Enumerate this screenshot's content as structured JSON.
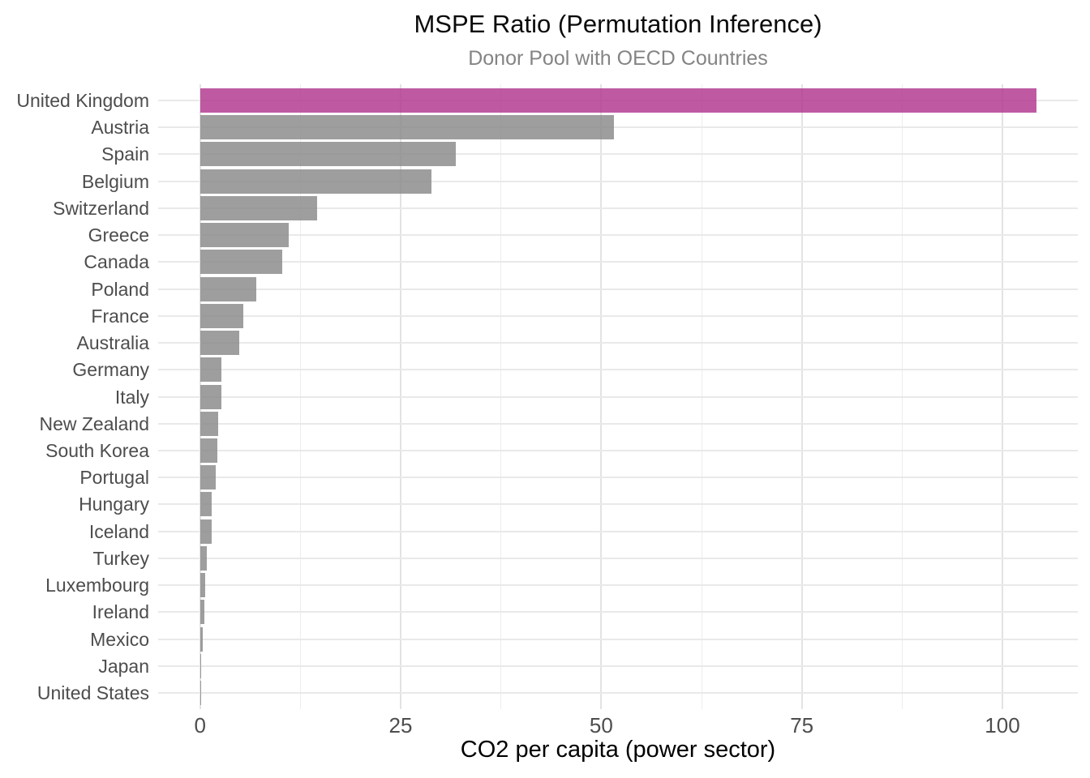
{
  "header": {
    "title": "MSPE Ratio (Permutation Inference)",
    "subtitle": "Donor Pool with OECD Countries"
  },
  "chart_data": {
    "type": "bar",
    "orientation": "horizontal",
    "title": "MSPE Ratio (Permutation Inference)",
    "subtitle": "Donor Pool with OECD Countries",
    "xlabel": "CO2 per capita (power sector)",
    "ylabel": "",
    "x_ticks": [
      0,
      25,
      50,
      75,
      100
    ],
    "xlim": [
      -5.2,
      109.4
    ],
    "grid": "major-and-minor-vertical, one-horizontal-line-per-category",
    "legend": "none",
    "categories": [
      "United Kingdom",
      "Austria",
      "Spain",
      "Belgium",
      "Switzerland",
      "Greece",
      "Canada",
      "Poland",
      "France",
      "Australia",
      "Germany",
      "Italy",
      "New Zealand",
      "South Korea",
      "Portugal",
      "Hungary",
      "Iceland",
      "Turkey",
      "Luxembourg",
      "Ireland",
      "Mexico",
      "Japan",
      "United States"
    ],
    "values": [
      104.2,
      51.6,
      31.9,
      28.8,
      14.6,
      11.0,
      10.2,
      7.0,
      5.4,
      4.9,
      2.7,
      2.7,
      2.3,
      2.2,
      2.0,
      1.45,
      1.4,
      0.85,
      0.6,
      0.5,
      0.37,
      0.17,
      0.06
    ],
    "highlight_category": "United Kingdom",
    "colors": {
      "highlight_bar": "#BF57A2",
      "default_bar": "#9E9E9E",
      "gridline": "#EBEBEB",
      "axis_text": "#4D4D4D",
      "subtitle_text": "#848484",
      "title_text": "#0A0A0A"
    }
  }
}
